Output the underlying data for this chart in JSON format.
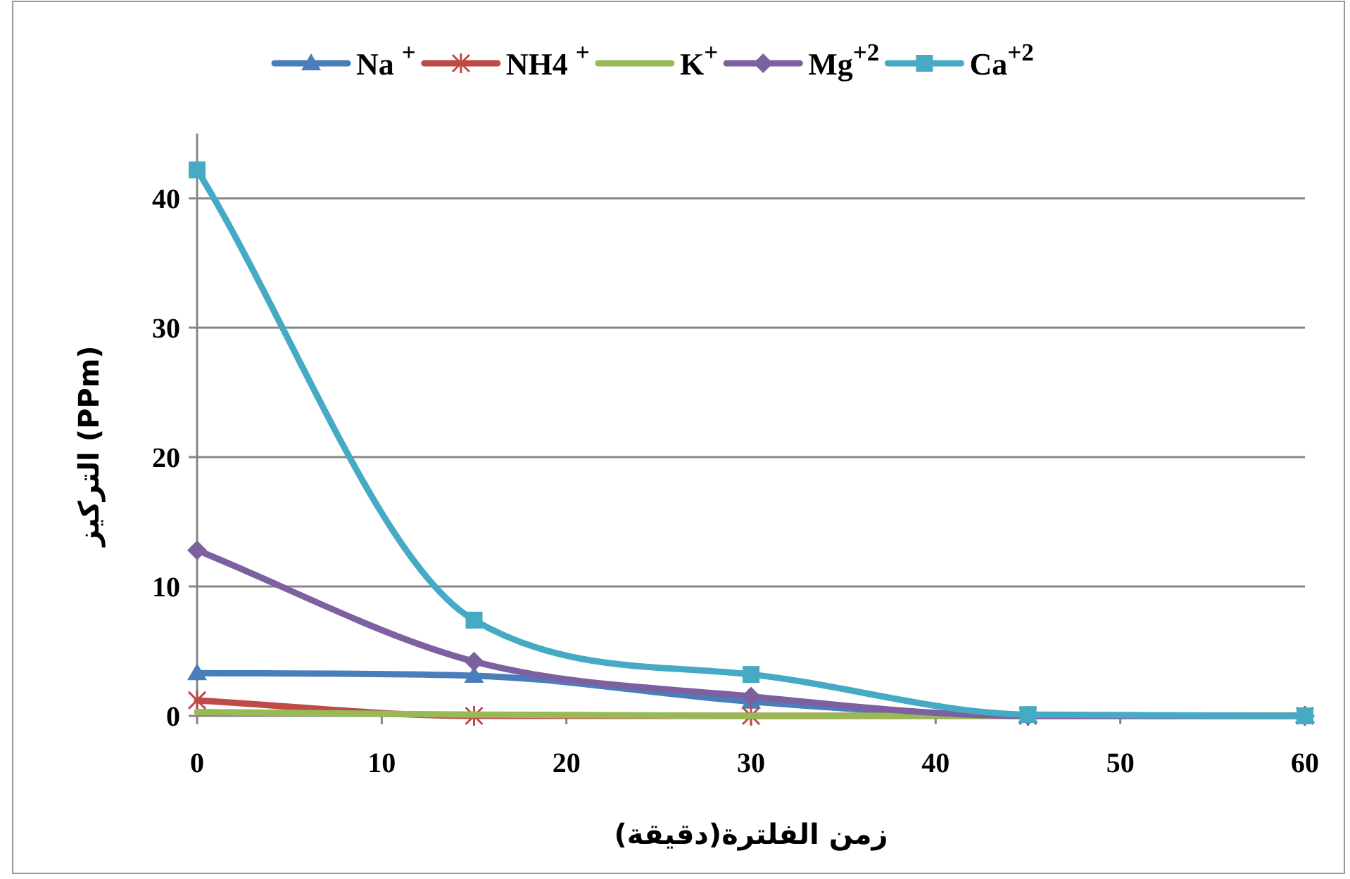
{
  "chart_data": {
    "type": "line",
    "xlabel": "زمن الفلترة(دقيقة)",
    "ylabel": "التركيز (PPm)",
    "x": [
      0,
      15,
      30,
      45,
      60
    ],
    "series": [
      {
        "name": "Na $^{+}$",
        "color": "#4a7ebb",
        "marker": "triangle",
        "values": [
          3.3,
          3.1,
          1.1,
          0,
          0
        ]
      },
      {
        "name": "NH4 $^{+}$",
        "color": "#be4b48",
        "marker": "cross",
        "values": [
          1.2,
          0,
          0,
          0,
          0
        ]
      },
      {
        "name": "K$^{+}$",
        "color": "#98b954",
        "marker": "none",
        "values": [
          0.3,
          0.1,
          0,
          0,
          0
        ]
      },
      {
        "name": "Mg$^{+2}$",
        "color": "#7d60a0",
        "marker": "diamond",
        "values": [
          12.8,
          4.2,
          1.5,
          0,
          0
        ]
      },
      {
        "name": "Ca$^{+2}$",
        "color": "#46aac5",
        "marker": "square",
        "values": [
          42.2,
          7.4,
          3.2,
          0.1,
          0
        ]
      }
    ],
    "xlim": [
      0,
      60
    ],
    "xticks": [
      0,
      10,
      20,
      30,
      40,
      50,
      60
    ],
    "ylim": [
      0,
      45
    ],
    "yticks": [
      0,
      10,
      20,
      30,
      40
    ],
    "grid": "y",
    "legend": "top",
    "line_style": "solid"
  }
}
